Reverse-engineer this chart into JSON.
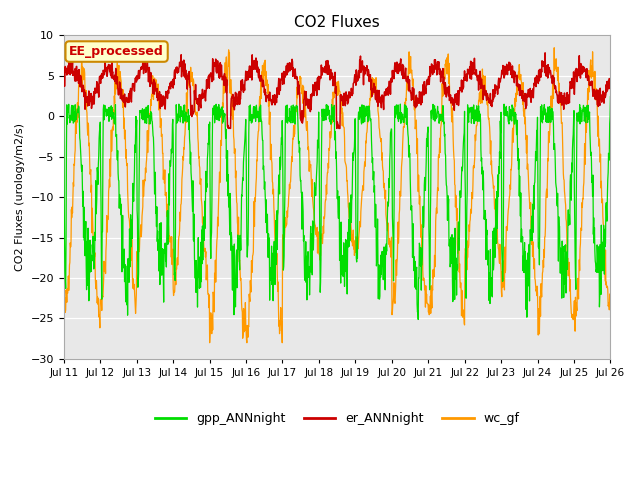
{
  "title": "CO2 Fluxes",
  "ylabel": "CO2 Fluxes (urology/m2/s)",
  "ylim": [
    -30,
    10
  ],
  "yticks": [
    -30,
    -25,
    -20,
    -15,
    -10,
    -5,
    0,
    5,
    10
  ],
  "bg_color": "#e8e8e8",
  "fig_color": "#ffffff",
  "annotation_text": "EE_processed",
  "annotation_color": "#cc0000",
  "annotation_bg": "#ffffcc",
  "annotation_border": "#cc8800",
  "gpp_color": "#00dd00",
  "er_color": "#cc0000",
  "wc_color": "#ff9900",
  "gpp_label": "gpp_ANNnight",
  "er_label": "er_ANNnight",
  "wc_label": "wc_gf",
  "n_points_per_day": 96,
  "n_days": 15,
  "x_tick_labels": [
    "Jul 11",
    "Jul 12",
    "Jul 13",
    "Jul 14",
    "Jul 15",
    "Jul 16",
    "Jul 17",
    "Jul 18",
    "Jul 19",
    "Jul 20",
    "Jul 21",
    "Jul 22",
    "Jul 23",
    "Jul 24",
    "Jul 25",
    "Jul 26"
  ]
}
